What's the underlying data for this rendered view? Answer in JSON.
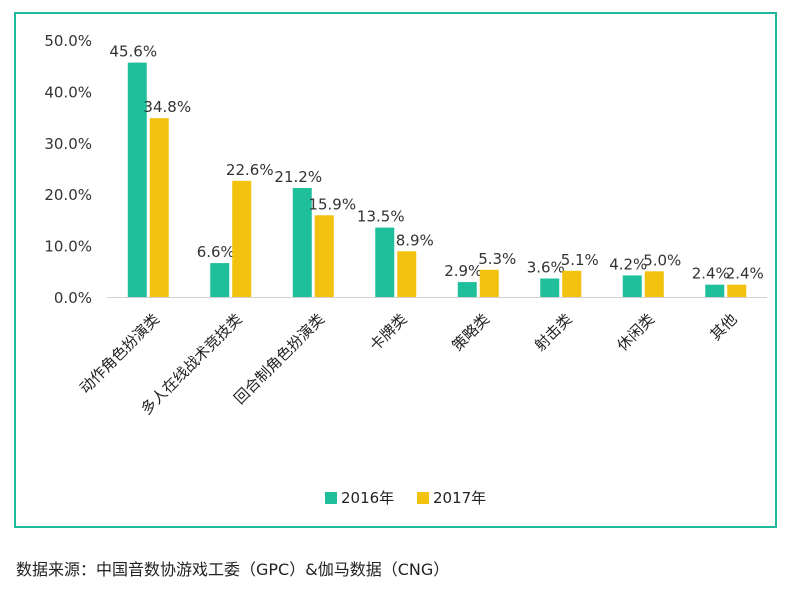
{
  "chart_data": {
    "type": "bar",
    "categories": [
      "动作角色扮演类",
      "多人在线战术竞技类",
      "回合制角色扮演类",
      "卡牌类",
      "策略类",
      "射击类",
      "休闲类",
      "其他"
    ],
    "series": [
      {
        "name": "2016年",
        "values": [
          45.6,
          6.6,
          21.2,
          13.5,
          2.9,
          3.6,
          4.2,
          2.4
        ],
        "color": "#1fbf9c"
      },
      {
        "name": "2017年",
        "values": [
          34.8,
          22.6,
          15.9,
          8.9,
          5.3,
          5.1,
          5.0,
          2.4
        ],
        "color": "#f2c20f"
      }
    ],
    "data_labels": [
      [
        "45.6%",
        "6.6%",
        "21.2%",
        "13.5%",
        "2.9%",
        "3.6%",
        "4.2%",
        "2.4%"
      ],
      [
        "34.8%",
        "22.6%",
        "15.9%",
        "8.9%",
        "5.3%",
        "5.1%",
        "5.0%",
        "2.4%"
      ]
    ],
    "yticks": [
      0,
      10,
      20,
      30,
      40,
      50
    ],
    "ytick_labels": [
      "0.0%",
      "10.0%",
      "20.0%",
      "30.0%",
      "40.0%",
      "50.0%"
    ],
    "ylim": [
      0,
      50
    ],
    "legend_position": "bottom-center",
    "grid": false,
    "title": "",
    "xlabel": "",
    "ylabel": ""
  },
  "footer": {
    "source_text": "数据来源：中国音数协游戏工委（GPC）&伽马数据（CNG）"
  }
}
